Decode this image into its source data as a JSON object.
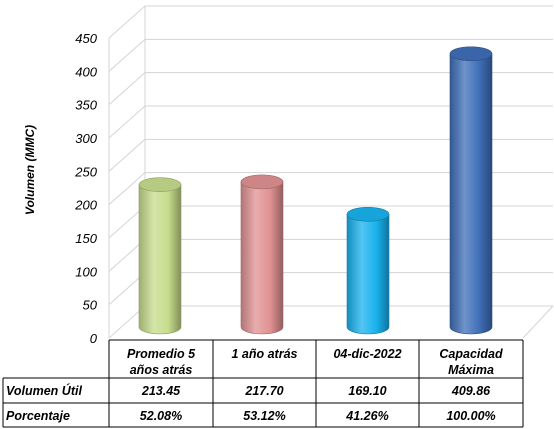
{
  "chart_data": {
    "type": "bar",
    "style": "3d-cylinder",
    "title": "",
    "xlabel": "",
    "ylabel": "Volumen (MMC)",
    "ylim": [
      0,
      450
    ],
    "yticks": [
      0,
      50,
      100,
      150,
      200,
      250,
      300,
      350,
      400,
      450
    ],
    "grid": true,
    "legend": "none",
    "categories": [
      [
        "Promedio 5",
        "años atrás"
      ],
      [
        "1 año atrás"
      ],
      [
        "04-dic-2022"
      ],
      [
        "Capacidad",
        "Máxima"
      ]
    ],
    "values": [
      213.45,
      217.7,
      169.1,
      409.86
    ],
    "colors": [
      "#c6dc8c",
      "#e09191",
      "#19b2ee",
      "#3f6fb8"
    ],
    "table": {
      "rows": [
        {
          "label": "Volumen Útil",
          "values": [
            "213.45",
            "217.70",
            "169.10",
            "409.86"
          ]
        },
        {
          "label": "Porcentaje",
          "values": [
            "52.08%",
            "53.12%",
            "41.26%",
            "100.00%"
          ]
        }
      ]
    }
  }
}
